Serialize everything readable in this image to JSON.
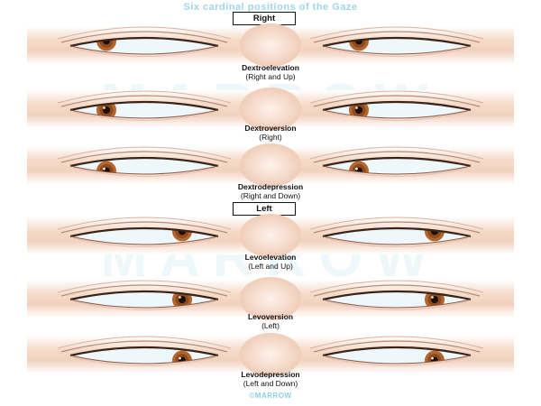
{
  "title": "Six cardinal positions of the Gaze",
  "watermark": "MARROW",
  "copyright": "©MARROW",
  "sections": {
    "right": "Right",
    "left": "Left"
  },
  "gazes": [
    {
      "name": "Dextroelevation",
      "desc": "(Right and Up)",
      "iris_dx": -0.6,
      "iris_dy": -0.35
    },
    {
      "name": "Dextroversion",
      "desc": "(Right)",
      "iris_dx": -0.6,
      "iris_dy": 0
    },
    {
      "name": "Dextrodepression",
      "desc": "(Right and Down)",
      "iris_dx": -0.6,
      "iris_dy": 0.35
    },
    {
      "name": "Levoelevation",
      "desc": "(Left and Up)",
      "iris_dx": 0.6,
      "iris_dy": -0.35
    },
    {
      "name": "Levoversion",
      "desc": "(Left)",
      "iris_dx": 0.6,
      "iris_dy": 0
    },
    {
      "name": "Levodepression",
      "desc": "(Left and Down)",
      "iris_dx": 0.6,
      "iris_dy": 0.35
    }
  ]
}
